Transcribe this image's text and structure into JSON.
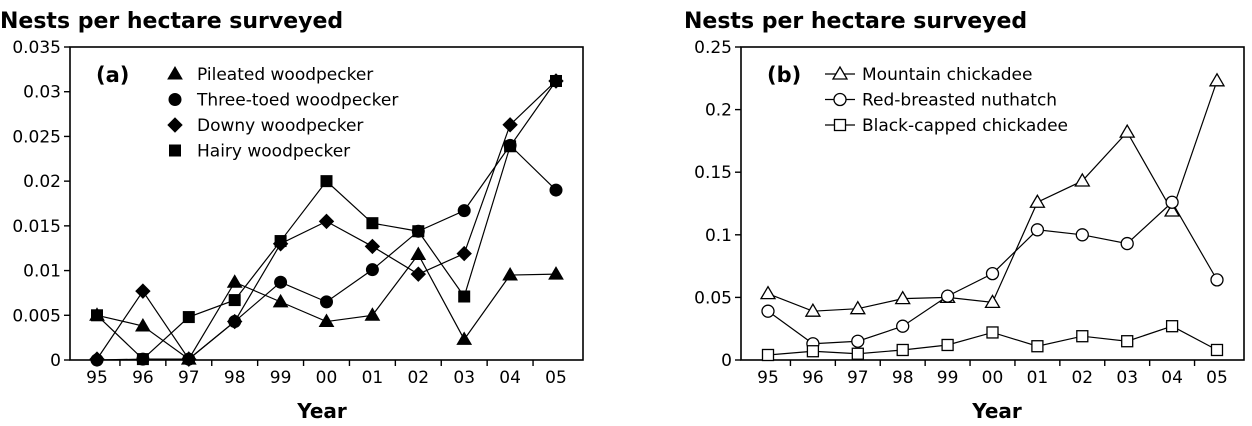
{
  "chart_data": [
    {
      "type": "line",
      "panel_label": "(a)",
      "title": "Nests per hectare surveyed",
      "xlabel": "Year",
      "ylabel": "",
      "categories": [
        "95",
        "96",
        "97",
        "98",
        "99",
        "00",
        "01",
        "02",
        "03",
        "04",
        "05"
      ],
      "ylim": [
        0,
        0.035
      ],
      "yticks": [
        "0",
        "0.005",
        "0.01",
        "0.015",
        "0.02",
        "0.025",
        "0.03",
        "0.035"
      ],
      "ytick_values": [
        0,
        0.005,
        0.01,
        0.015,
        0.02,
        0.025,
        0.03,
        0.035
      ],
      "legend_position": "top-left",
      "grid": false,
      "series": [
        {
          "name": "Pileated woodpecker",
          "marker": "triangle-filled",
          "values": [
            0.005,
            0.0038,
            0.0001,
            0.0087,
            0.0065,
            0.0043,
            0.005,
            0.0118,
            0.0023,
            0.0095,
            0.0096
          ]
        },
        {
          "name": "Three-toed woodpecker",
          "marker": "circle-filled",
          "values": [
            0.0,
            0.0001,
            0.0001,
            0.0043,
            0.0087,
            0.0065,
            0.0101,
            0.0144,
            0.0167,
            0.024,
            0.019
          ]
        },
        {
          "name": "Downy woodpecker",
          "marker": "diamond-filled",
          "values": [
            0.0001,
            0.0077,
            0.0001,
            0.0043,
            0.013,
            0.0155,
            0.0127,
            0.0096,
            0.0119,
            0.0263,
            0.0312
          ]
        },
        {
          "name": "Hairy woodpecker",
          "marker": "square-filled",
          "values": [
            0.005,
            0.0001,
            0.0048,
            0.0067,
            0.0133,
            0.02,
            0.0153,
            0.0144,
            0.0071,
            0.0239,
            0.0312
          ]
        }
      ]
    },
    {
      "type": "line",
      "panel_label": "(b)",
      "title": "Nests per hectare surveyed",
      "xlabel": "Year",
      "ylabel": "",
      "categories": [
        "95",
        "96",
        "97",
        "98",
        "99",
        "00",
        "01",
        "02",
        "03",
        "04",
        "05"
      ],
      "ylim": [
        0,
        0.25
      ],
      "yticks": [
        "0",
        "0.05",
        "0.1",
        "0.15",
        "0.2",
        "0.25"
      ],
      "ytick_values": [
        0,
        0.05,
        0.1,
        0.15,
        0.2,
        0.25
      ],
      "legend_position": "top-left",
      "grid": false,
      "series": [
        {
          "name": "Mountain chickadee",
          "marker": "triangle-open",
          "values": [
            0.053,
            0.039,
            0.041,
            0.049,
            0.05,
            0.046,
            0.126,
            0.143,
            0.182,
            0.119,
            0.223
          ]
        },
        {
          "name": "Red-breasted nuthatch",
          "marker": "circle-open",
          "values": [
            0.039,
            0.013,
            0.015,
            0.027,
            0.051,
            0.069,
            0.104,
            0.1,
            0.093,
            0.126,
            0.064
          ]
        },
        {
          "name": "Black-capped chickadee",
          "marker": "square-open",
          "values": [
            0.004,
            0.007,
            0.005,
            0.008,
            0.012,
            0.022,
            0.011,
            0.019,
            0.015,
            0.027,
            0.008
          ]
        }
      ]
    }
  ]
}
